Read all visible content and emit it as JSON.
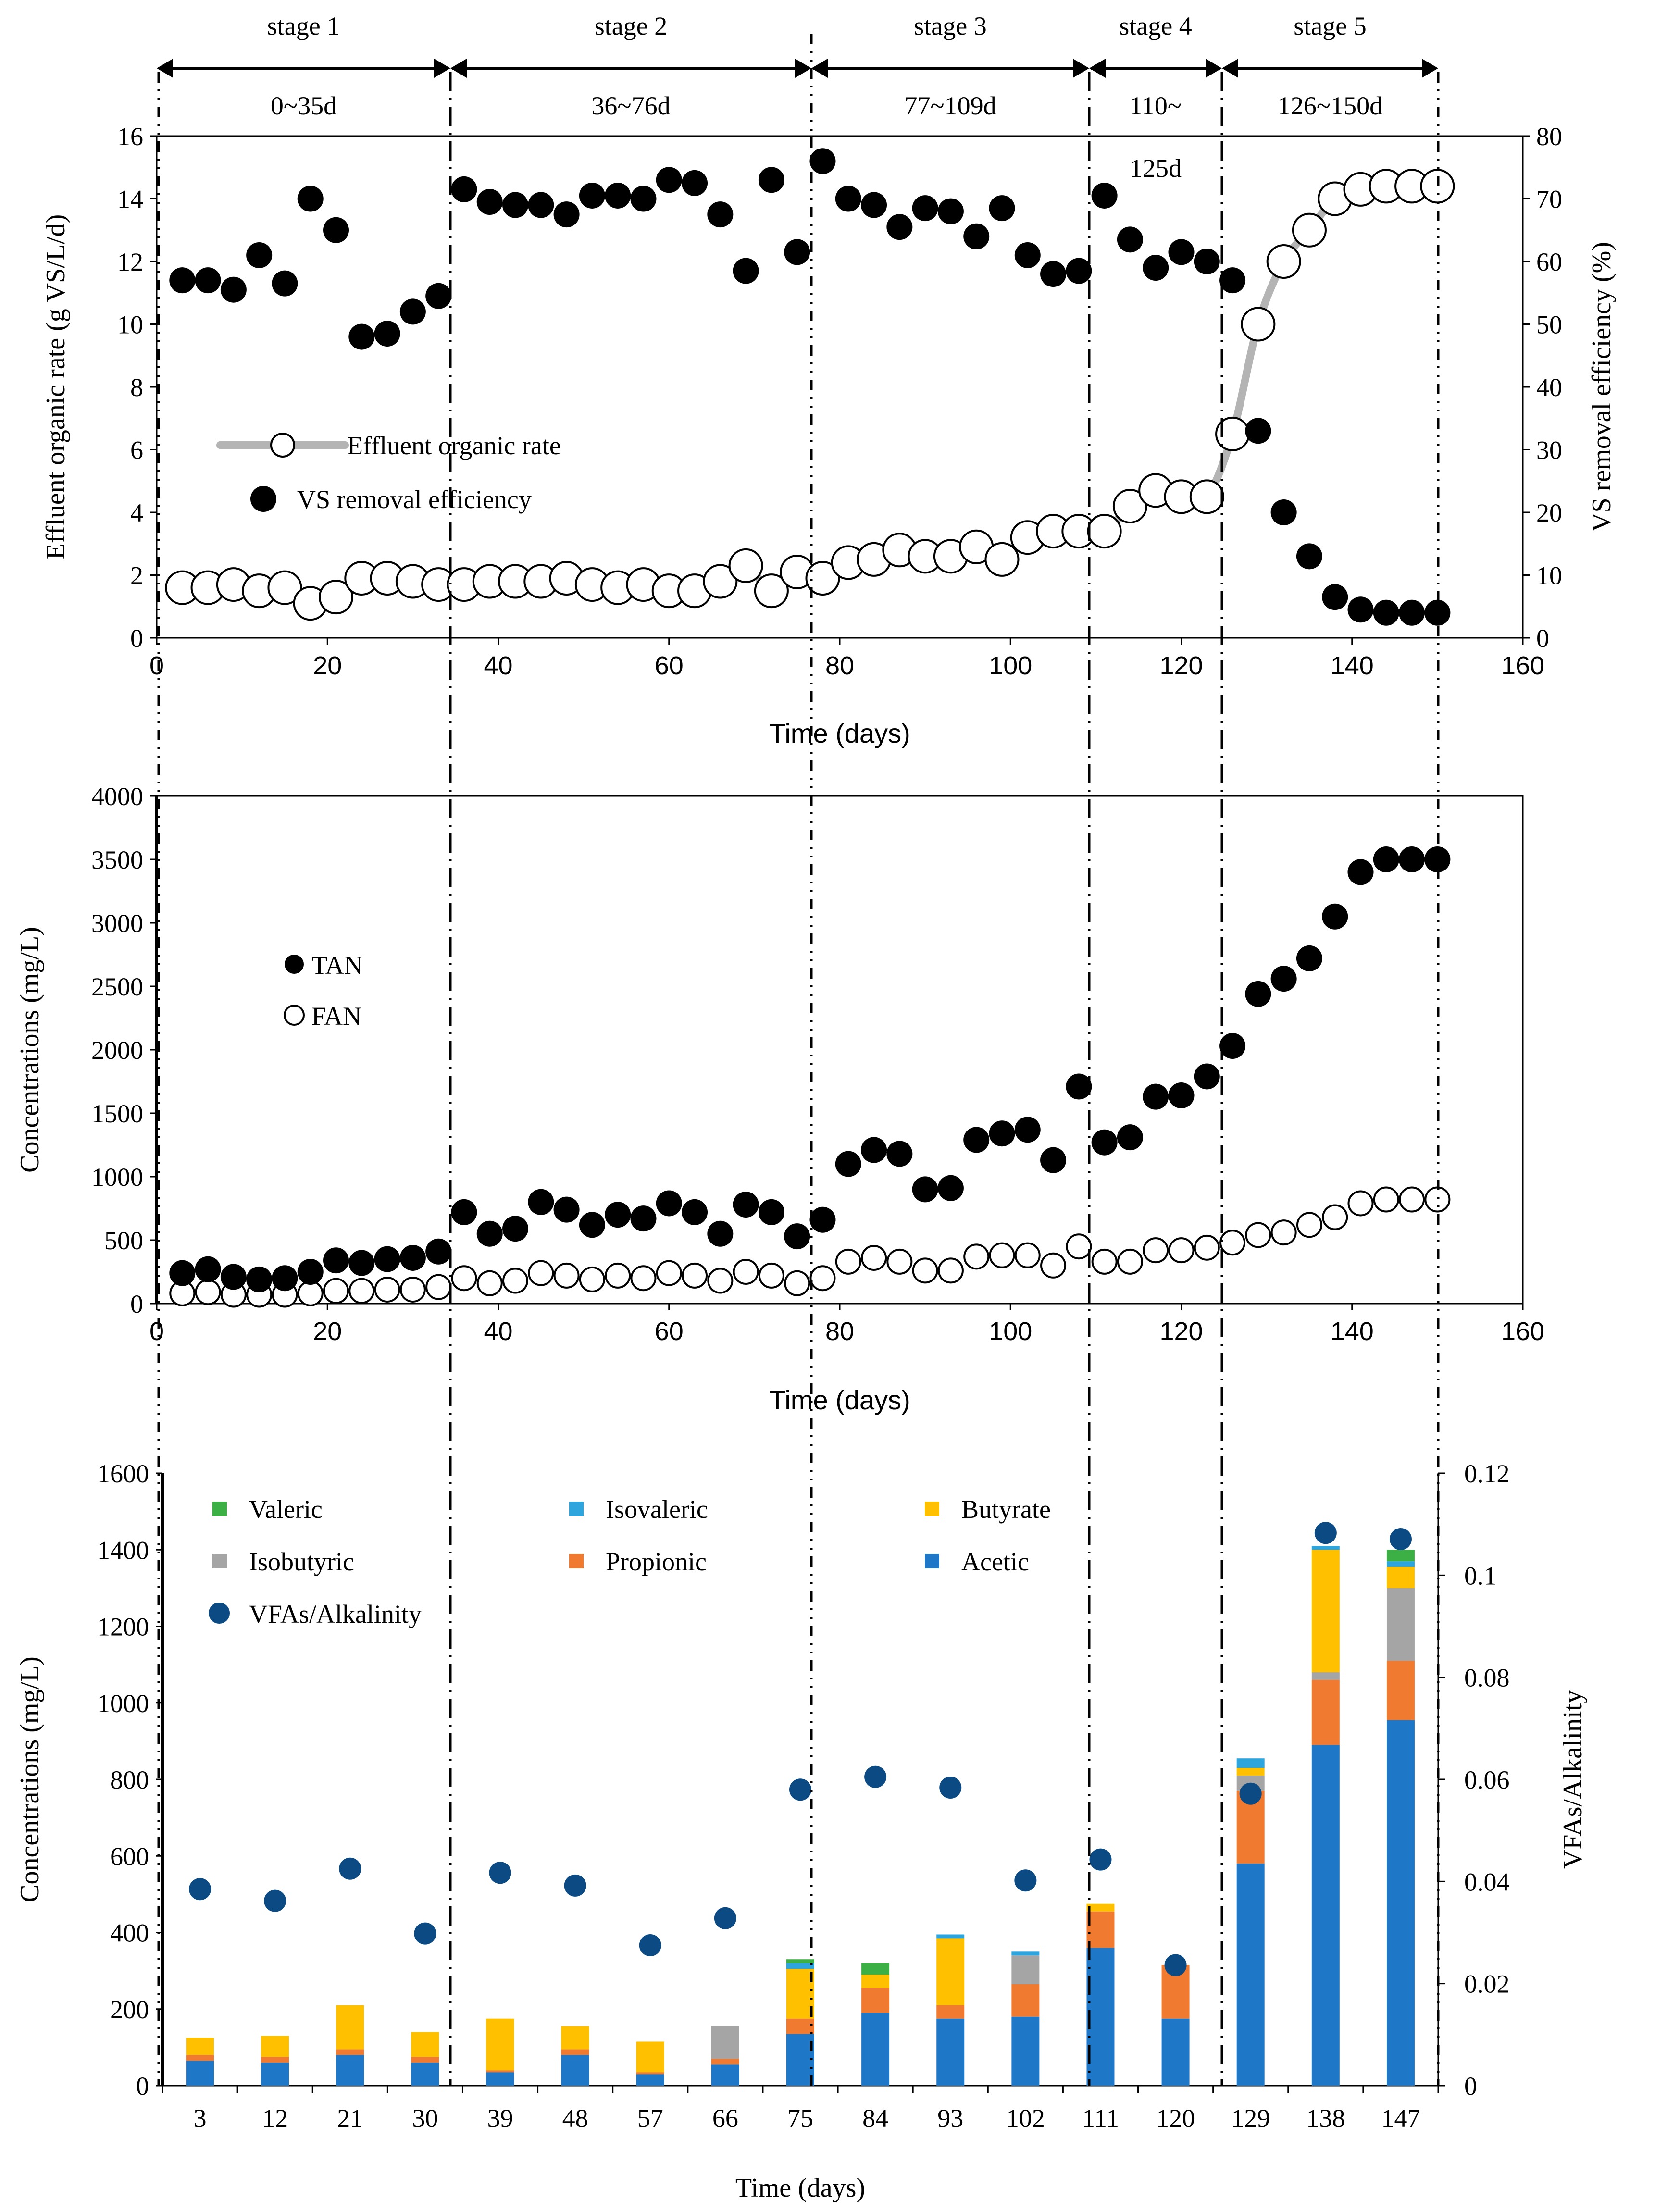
{
  "colors": {
    "gray_line": "#B4B4B4",
    "black": "#000000",
    "acetic": "#1F77C8",
    "propionic": "#F07A30",
    "isobutyric": "#A5A5A5",
    "butyrate": "#FFC000",
    "isovaleric": "#2FA5DE",
    "valeric": "#3CB044",
    "ratio": "#0B4A82"
  },
  "stages": [
    {
      "label": "stage 1",
      "range": "0~35d",
      "start": 0,
      "end": 35
    },
    {
      "label": "stage 2",
      "range": "36~76d",
      "start": 35,
      "end": 76
    },
    {
      "label": "stage 3",
      "range": "77~109d",
      "start": 76,
      "end": 109
    },
    {
      "label": "stage 4",
      "range_line1": "110~",
      "range_line2": "125d",
      "start": 109,
      "end": 125
    },
    {
      "label": "stage 5",
      "range": "126~150d",
      "start": 125,
      "end": 150
    }
  ],
  "chart_data": [
    {
      "type": "scatter",
      "title": "",
      "xlabel": "Time (days)",
      "ylabel": "Effluent organic rate (g VS/L/d)",
      "y2label": "VS removal efficiency (%)",
      "xlim": [
        0,
        160
      ],
      "ylim": [
        0,
        16
      ],
      "y2lim": [
        0,
        80
      ],
      "xticks": [
        "0",
        "20",
        "40",
        "60",
        "80",
        "100",
        "120",
        "140",
        "160"
      ],
      "yticks": [
        "0",
        "2",
        "4",
        "6",
        "8",
        "10",
        "12",
        "14",
        "16"
      ],
      "y2ticks": [
        "0",
        "10",
        "20",
        "30",
        "40",
        "50",
        "60",
        "70",
        "80"
      ],
      "legend": [
        "Effluent organic rate",
        "VS removal efficiency"
      ],
      "series": [
        {
          "name": "Effluent organic rate",
          "marker": "open-circle-with-line",
          "points": [
            [
              3,
              1.6
            ],
            [
              6,
              1.6
            ],
            [
              9,
              1.7
            ],
            [
              12,
              1.5
            ],
            [
              15,
              1.6
            ],
            [
              18,
              1.1
            ],
            [
              21,
              1.3
            ],
            [
              24,
              1.9
            ],
            [
              27,
              1.9
            ],
            [
              30,
              1.8
            ],
            [
              33,
              1.7
            ],
            [
              36,
              1.7
            ],
            [
              39,
              1.8
            ],
            [
              42,
              1.8
            ],
            [
              45,
              1.8
            ],
            [
              48,
              1.9
            ],
            [
              51,
              1.7
            ],
            [
              54,
              1.6
            ],
            [
              57,
              1.7
            ],
            [
              60,
              1.5
            ],
            [
              63,
              1.5
            ],
            [
              66,
              1.8
            ],
            [
              69,
              2.3
            ],
            [
              72,
              1.5
            ],
            [
              75,
              2.1
            ],
            [
              78,
              1.9
            ],
            [
              81,
              2.4
            ],
            [
              84,
              2.5
            ],
            [
              87,
              2.8
            ],
            [
              90,
              2.6
            ],
            [
              93,
              2.6
            ],
            [
              96,
              2.9
            ],
            [
              99,
              2.5
            ],
            [
              102,
              3.2
            ],
            [
              105,
              3.4
            ],
            [
              108,
              3.4
            ],
            [
              111,
              3.4
            ],
            [
              114,
              4.2
            ],
            [
              117,
              4.7
            ],
            [
              120,
              4.5
            ],
            [
              123,
              4.5
            ],
            [
              126,
              6.5
            ],
            [
              129,
              10
            ],
            [
              132,
              12
            ],
            [
              135,
              13
            ],
            [
              138,
              14
            ],
            [
              141,
              14.3
            ],
            [
              144,
              14.4
            ],
            [
              147,
              14.4
            ],
            [
              150,
              14.4
            ]
          ]
        },
        {
          "name": "VS removal efficiency",
          "marker": "filled-circle",
          "axis": "y2",
          "points": [
            [
              3,
              57
            ],
            [
              6,
              57
            ],
            [
              9,
              55.5
            ],
            [
              12,
              61
            ],
            [
              15,
              56.5
            ],
            [
              18,
              70
            ],
            [
              21,
              65
            ],
            [
              24,
              48
            ],
            [
              27,
              48.5
            ],
            [
              30,
              52
            ],
            [
              33,
              54.5
            ],
            [
              36,
              71.5
            ],
            [
              39,
              69.5
            ],
            [
              42,
              69
            ],
            [
              45,
              69
            ],
            [
              48,
              67.5
            ],
            [
              51,
              70.5
            ],
            [
              54,
              70.5
            ],
            [
              57,
              70
            ],
            [
              60,
              73
            ],
            [
              63,
              72.5
            ],
            [
              66,
              67.5
            ],
            [
              69,
              58.5
            ],
            [
              72,
              73
            ],
            [
              75,
              61.5
            ],
            [
              78,
              76
            ],
            [
              81,
              70
            ],
            [
              84,
              69
            ],
            [
              87,
              65.5
            ],
            [
              90,
              68.5
            ],
            [
              93,
              68
            ],
            [
              96,
              64
            ],
            [
              99,
              68.5
            ],
            [
              102,
              61
            ],
            [
              105,
              58
            ],
            [
              108,
              58.5
            ],
            [
              111,
              70.5
            ],
            [
              114,
              63.5
            ],
            [
              117,
              59
            ],
            [
              120,
              61.5
            ],
            [
              123,
              60
            ],
            [
              126,
              57
            ],
            [
              129,
              33
            ],
            [
              132,
              20
            ],
            [
              135,
              13
            ],
            [
              138,
              6.5
            ],
            [
              141,
              4.5
            ],
            [
              144,
              4
            ],
            [
              147,
              4
            ],
            [
              150,
              4
            ]
          ]
        }
      ]
    },
    {
      "type": "scatter",
      "title": "",
      "xlabel": "Time (days)",
      "ylabel": "Concentrations (mg/L)",
      "xlim": [
        0,
        160
      ],
      "ylim": [
        0,
        4000
      ],
      "xticks": [
        "0",
        "20",
        "40",
        "60",
        "80",
        "100",
        "120",
        "140",
        "160"
      ],
      "yticks": [
        "0",
        "500",
        "1000",
        "1500",
        "2000",
        "2500",
        "3000",
        "3500",
        "4000"
      ],
      "legend": [
        "TAN",
        "FAN"
      ],
      "series": [
        {
          "name": "TAN",
          "marker": "filled-circle",
          "points": [
            [
              3,
              240
            ],
            [
              6,
              270
            ],
            [
              9,
              210
            ],
            [
              12,
              190
            ],
            [
              15,
              200
            ],
            [
              18,
              250
            ],
            [
              21,
              340
            ],
            [
              24,
              320
            ],
            [
              27,
              350
            ],
            [
              30,
              360
            ],
            [
              33,
              410
            ],
            [
              36,
              720
            ],
            [
              39,
              550
            ],
            [
              42,
              590
            ],
            [
              45,
              800
            ],
            [
              48,
              740
            ],
            [
              51,
              620
            ],
            [
              54,
              700
            ],
            [
              57,
              670
            ],
            [
              60,
              790
            ],
            [
              63,
              720
            ],
            [
              66,
              550
            ],
            [
              69,
              780
            ],
            [
              72,
              720
            ],
            [
              75,
              530
            ],
            [
              78,
              660
            ],
            [
              81,
              1100
            ],
            [
              84,
              1210
            ],
            [
              87,
              1180
            ],
            [
              90,
              900
            ],
            [
              93,
              910
            ],
            [
              96,
              1290
            ],
            [
              99,
              1340
            ],
            [
              102,
              1370
            ],
            [
              105,
              1130
            ],
            [
              108,
              1710
            ],
            [
              111,
              1270
            ],
            [
              114,
              1310
            ],
            [
              117,
              1630
            ],
            [
              120,
              1640
            ],
            [
              123,
              1790
            ],
            [
              126,
              2030
            ],
            [
              129,
              2440
            ],
            [
              132,
              2560
            ],
            [
              135,
              2720
            ],
            [
              138,
              3050
            ],
            [
              141,
              3400
            ],
            [
              144,
              3500
            ],
            [
              147,
              3500
            ],
            [
              150,
              3500
            ]
          ]
        },
        {
          "name": "FAN",
          "marker": "open-circle",
          "points": [
            [
              3,
              80
            ],
            [
              6,
              90
            ],
            [
              9,
              70
            ],
            [
              12,
              70
            ],
            [
              15,
              70
            ],
            [
              18,
              80
            ],
            [
              21,
              100
            ],
            [
              24,
              100
            ],
            [
              27,
              110
            ],
            [
              30,
              110
            ],
            [
              33,
              130
            ],
            [
              36,
              200
            ],
            [
              39,
              160
            ],
            [
              42,
              180
            ],
            [
              45,
              240
            ],
            [
              48,
              220
            ],
            [
              51,
              190
            ],
            [
              54,
              220
            ],
            [
              57,
              200
            ],
            [
              60,
              240
            ],
            [
              63,
              220
            ],
            [
              66,
              180
            ],
            [
              69,
              250
            ],
            [
              72,
              220
            ],
            [
              75,
              160
            ],
            [
              78,
              200
            ],
            [
              81,
              330
            ],
            [
              84,
              360
            ],
            [
              87,
              330
            ],
            [
              90,
              260
            ],
            [
              93,
              260
            ],
            [
              96,
              370
            ],
            [
              99,
              380
            ],
            [
              102,
              380
            ],
            [
              105,
              300
            ],
            [
              108,
              450
            ],
            [
              111,
              330
            ],
            [
              114,
              330
            ],
            [
              117,
              420
            ],
            [
              120,
              420
            ],
            [
              123,
              440
            ],
            [
              126,
              480
            ],
            [
              129,
              540
            ],
            [
              132,
              560
            ],
            [
              135,
              620
            ],
            [
              138,
              680
            ],
            [
              141,
              790
            ],
            [
              144,
              820
            ],
            [
              147,
              820
            ],
            [
              150,
              820
            ]
          ]
        }
      ]
    },
    {
      "type": "bar",
      "stacked": true,
      "title": "",
      "xlabel": "Time (days)",
      "ylabel": "Concentrations (mg/L)",
      "y2label": "VFAs/Alkalinity",
      "ylim": [
        0,
        1600
      ],
      "y2lim": [
        0,
        0.12
      ],
      "yticks": [
        "0",
        "200",
        "400",
        "600",
        "800",
        "1000",
        "1200",
        "1400",
        "1600"
      ],
      "y2ticks": [
        "0",
        "0.02",
        "0.04",
        "0.06",
        "0.08",
        "0.1",
        "0.12"
      ],
      "categories": [
        "3",
        "12",
        "21",
        "30",
        "39",
        "48",
        "57",
        "66",
        "75",
        "84",
        "93",
        "102",
        "111",
        "120",
        "129",
        "138",
        "147"
      ],
      "series": [
        {
          "name": "Acetic",
          "values": [
            65,
            60,
            80,
            60,
            35,
            80,
            30,
            55,
            135,
            190,
            175,
            180,
            360,
            175,
            580,
            890,
            955
          ]
        },
        {
          "name": "Propionic",
          "values": [
            15,
            15,
            15,
            15,
            5,
            15,
            5,
            15,
            40,
            65,
            35,
            85,
            95,
            140,
            190,
            170,
            155
          ]
        },
        {
          "name": "Isobutyric",
          "values": [
            0,
            0,
            0,
            0,
            0,
            0,
            0,
            85,
            0,
            0,
            0,
            75,
            0,
            0,
            40,
            20,
            190
          ]
        },
        {
          "name": "Butyrate",
          "values": [
            45,
            55,
            115,
            65,
            135,
            60,
            80,
            0,
            130,
            35,
            175,
            0,
            20,
            0,
            20,
            320,
            55
          ]
        },
        {
          "name": "Isovaleric",
          "values": [
            0,
            0,
            0,
            0,
            0,
            0,
            0,
            0,
            15,
            0,
            10,
            10,
            0,
            0,
            25,
            10,
            15
          ]
        },
        {
          "name": "Valeric",
          "values": [
            0,
            0,
            0,
            0,
            0,
            0,
            0,
            0,
            10,
            30,
            0,
            0,
            0,
            0,
            0,
            0,
            30
          ]
        }
      ],
      "ratio": {
        "name": "VFAs/Alkalinity",
        "values": [
          0.0385,
          0.0362,
          0.0425,
          0.0298,
          0.0417,
          0.0392,
          0.0275,
          0.0328,
          0.058,
          0.0605,
          0.0584,
          0.0402,
          0.0443,
          0.0236,
          0.0572,
          0.1083,
          0.1071
        ]
      },
      "legend": [
        "Valeric",
        "Isovaleric",
        "Butyrate",
        "Isobutyric",
        "Propionic",
        "Acetic",
        "VFAs/Alkalinity"
      ]
    }
  ]
}
